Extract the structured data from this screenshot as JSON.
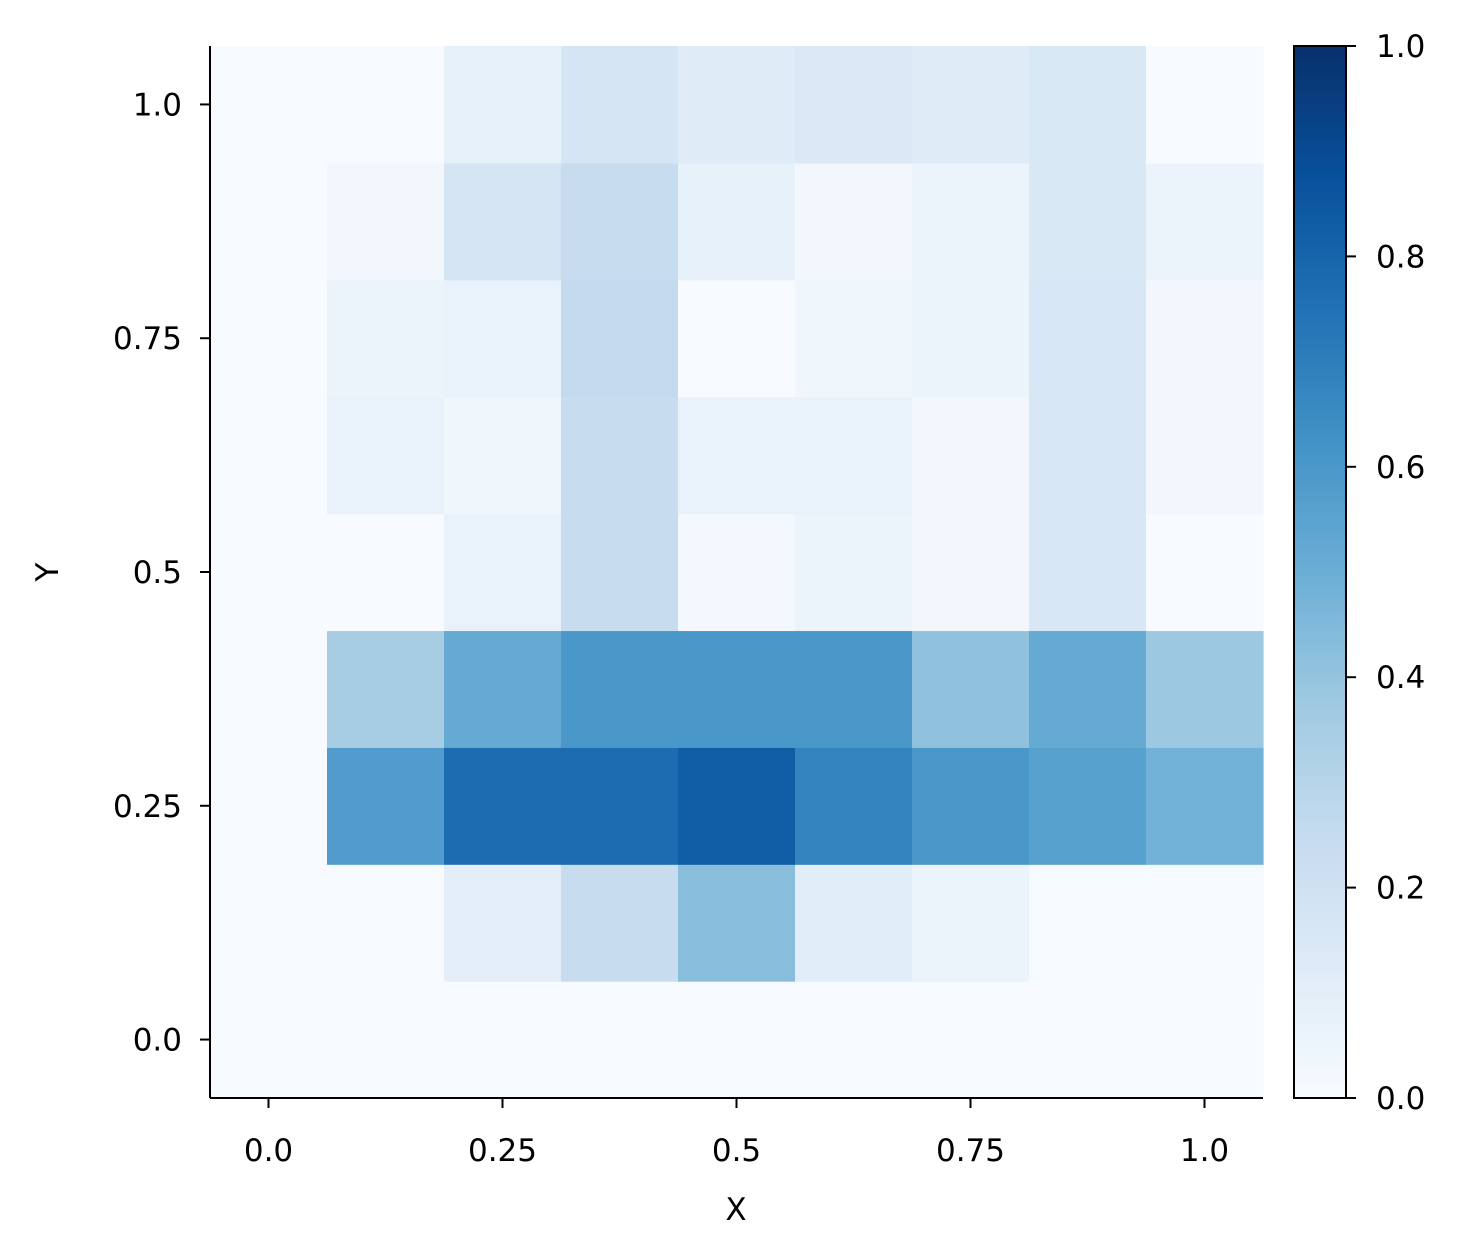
{
  "chart_data": {
    "type": "heatmap",
    "title": "",
    "xlabel": "X",
    "ylabel": "Y",
    "colormap": "Blues",
    "x_categories": [
      "0.0",
      "0.125",
      "0.25",
      "0.375",
      "0.5",
      "0.625",
      "0.75",
      "0.875",
      "1.0"
    ],
    "y_categories": [
      "0.0",
      "0.125",
      "0.25",
      "0.375",
      "0.5",
      "0.625",
      "0.75",
      "0.875",
      "1.0"
    ],
    "x_tick_labels": [
      "0.0",
      "0.25",
      "0.5",
      "0.75",
      "1.0"
    ],
    "y_tick_labels": [
      "0.0",
      "0.25",
      "0.5",
      "0.75",
      "1.0"
    ],
    "values": [
      [
        0.0,
        0.0,
        0.0,
        0.0,
        0.0,
        0.0,
        0.0,
        0.0,
        0.0
      ],
      [
        0.0,
        0.0,
        0.1,
        0.24,
        0.43,
        0.11,
        0.06,
        0.01,
        0.01
      ],
      [
        0.0,
        0.58,
        0.77,
        0.77,
        0.83,
        0.68,
        0.6,
        0.56,
        0.48
      ],
      [
        0.0,
        0.35,
        0.52,
        0.6,
        0.6,
        0.6,
        0.41,
        0.52,
        0.38
      ],
      [
        0.0,
        0.0,
        0.07,
        0.24,
        0.02,
        0.06,
        0.03,
        0.16,
        0.0
      ],
      [
        0.0,
        0.07,
        0.04,
        0.24,
        0.07,
        0.07,
        0.03,
        0.16,
        0.03
      ],
      [
        0.0,
        0.06,
        0.07,
        0.26,
        0.0,
        0.04,
        0.06,
        0.16,
        0.03
      ],
      [
        0.0,
        0.03,
        0.17,
        0.24,
        0.08,
        0.03,
        0.06,
        0.15,
        0.06
      ],
      [
        0.0,
        0.0,
        0.08,
        0.17,
        0.12,
        0.14,
        0.12,
        0.15,
        0.0
      ]
    ],
    "colorbar": {
      "range": [
        0.0,
        1.0
      ],
      "tick_labels": [
        "0.0",
        "0.2",
        "0.4",
        "0.6",
        "0.8",
        "1.0"
      ]
    },
    "grid": false,
    "spines": "left-bottom"
  }
}
